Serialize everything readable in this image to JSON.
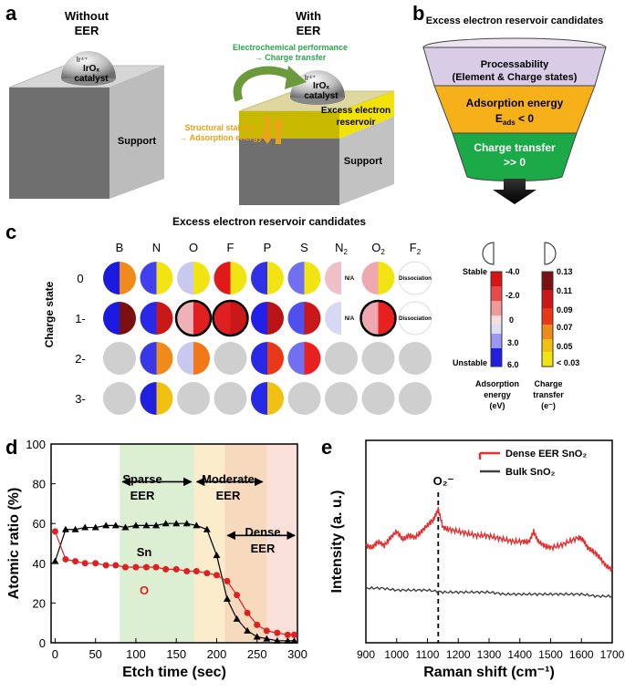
{
  "panels": {
    "a": "a",
    "b": "b",
    "c": "c",
    "d": "d",
    "e": "e"
  },
  "panel_a": {
    "left_title_1": "Without",
    "left_title_2": "EER",
    "left_catalyst_ion": "Ir⁴⁺",
    "left_catalyst_1": "IrOₓ",
    "left_catalyst_2": "catalyst",
    "left_support": "Support",
    "right_title_1": "With",
    "right_title_2": "EER",
    "right_catalyst_ion": "Ir⁴⁺",
    "right_catalyst_1": "IrOₓ",
    "right_catalyst_2": "catalyst",
    "performance_1": "Electrochemical performance",
    "performance_2": "→ Charge transfer",
    "stability_1": "Structural stability",
    "stability_2": "→ Adsorption energy",
    "eer_layer_1": "Excess electron",
    "eer_layer_2": "reservoir",
    "right_support": "Support",
    "colors": {
      "performance": "#2aa84a",
      "stability": "#e8a416",
      "layer": "#f2e20a",
      "arrow": "#6a9a3c"
    }
  },
  "panel_b": {
    "title": "Excess electron reservoir candidates",
    "tier1_1": "Processability",
    "tier1_2": "(Element & Charge states)",
    "tier2_1": "Adsorption energy",
    "tier2_2": "E",
    "tier2_sub": "ads",
    "tier2_3": " < 0",
    "tier3_1": "Charge transfer",
    "tier3_2": ">> 0",
    "colors": {
      "tier1": "#d8cce6",
      "tier2": "#f5b01a",
      "tier3": "#1ca948"
    }
  },
  "panel_c": {
    "title": "Excess electron reservoir candidates",
    "columns": [
      "B",
      "N",
      "O",
      "F",
      "P",
      "S",
      "N",
      "O",
      "F"
    ],
    "column_subscripts": [
      "",
      "",
      "",
      "",
      "",
      "",
      "2",
      "2",
      "2"
    ],
    "rows": [
      "0",
      "1-",
      "2-",
      "3-"
    ],
    "y_label": "Charge state",
    "cells": [
      [
        [
          "#1a1ae0",
          "#f08a1a"
        ],
        [
          "#4040f0",
          "#f2e412"
        ],
        [
          "#c8c8f0",
          "#f2e412"
        ],
        [
          "#e01a1a",
          "#f2e412"
        ],
        [
          "#3030e8",
          "#f2e412"
        ],
        [
          "#7070f0",
          "#f2e412"
        ],
        [
          "#f0c0c8",
          "na"
        ],
        [
          "#f0a8b0",
          "#f2e412"
        ],
        [
          "dis",
          "dis"
        ]
      ],
      [
        [
          "#1a1ae0",
          "#7a1010"
        ],
        [
          "#2828e8",
          "#c81818"
        ],
        [
          "#f0b0b8",
          "#e02020"
        ],
        [
          "#e02020",
          "#c81818"
        ],
        [
          "#2020e8",
          "#b81414"
        ],
        [
          "#5050f0",
          "#c81818"
        ],
        [
          "#d8d8f4",
          "na"
        ],
        [
          "#f0a8b0",
          "#e82020"
        ],
        [
          "dis",
          "dis"
        ]
      ],
      [
        [
          "grey",
          "grey"
        ],
        [
          "#3838e8",
          "#f08a1a"
        ],
        [
          "#c8c8f0",
          "#f07818"
        ],
        [
          "grey",
          "grey"
        ],
        [
          "#2828e8",
          "#e83818"
        ],
        [
          "#7070f0",
          "#e82020"
        ],
        [
          "grey",
          "grey"
        ],
        [
          "grey",
          "grey"
        ],
        [
          "grey",
          "grey"
        ]
      ],
      [
        [
          "grey",
          "grey"
        ],
        [
          "#2020e0",
          "#f0c012"
        ],
        [
          "grey",
          "grey"
        ],
        [
          "grey",
          "grey"
        ],
        [
          "#2828e8",
          "#f0c012"
        ],
        [
          "grey",
          "grey"
        ],
        [
          "grey",
          "grey"
        ],
        [
          "grey",
          "grey"
        ],
        [
          "grey",
          "grey"
        ]
      ]
    ],
    "highlighted": [
      [
        1,
        2
      ],
      [
        1,
        3
      ],
      [
        1,
        7
      ]
    ],
    "na_label": "N/A",
    "dissociation_label": "Dissociation",
    "adsorption_legend": {
      "top": "Stable",
      "bottom": "Unstable",
      "ticks": [
        "-4.0",
        "-2.0",
        "0",
        "3.0",
        "6.0"
      ],
      "title_1": "Adsorption",
      "title_2": "energy",
      "title_3": "(eV)"
    },
    "charge_legend": {
      "ticks": [
        "0.13",
        "0.11",
        "0.09",
        "0.07",
        "0.05",
        "< 0.03"
      ],
      "title_1": "Charge",
      "title_2": "transfer",
      "title_3": "(e⁻)"
    }
  },
  "chart_data": [
    {
      "type": "line",
      "title": "",
      "xlabel": "Etch time (sec)",
      "ylabel": "Atomic ratio (%)",
      "xlim": [
        -5,
        300
      ],
      "ylim": [
        0,
        100
      ],
      "xticks": [
        "0",
        "50",
        "100",
        "150",
        "200",
        "250",
        "300"
      ],
      "yticks": [
        "0",
        "20",
        "40",
        "60",
        "80",
        "100"
      ],
      "series": [
        {
          "name": "Sn",
          "color": "#000000",
          "marker": "triangle",
          "x": [
            0,
            13,
            25,
            37,
            50,
            63,
            75,
            87,
            100,
            113,
            125,
            137,
            150,
            163,
            175,
            188,
            200,
            213,
            225,
            238,
            250,
            262,
            275,
            288,
            296
          ],
          "y": [
            41,
            57,
            57,
            58,
            58,
            59,
            59,
            58,
            59,
            59,
            59,
            60,
            60,
            60,
            59,
            57,
            44,
            22,
            12,
            6,
            3,
            2,
            1,
            1,
            1
          ]
        },
        {
          "name": "O",
          "color": "#e02020",
          "marker": "circle",
          "x": [
            0,
            13,
            25,
            37,
            50,
            63,
            75,
            87,
            100,
            113,
            125,
            137,
            150,
            163,
            175,
            188,
            200,
            213,
            225,
            238,
            250,
            262,
            275,
            288,
            296
          ],
          "y": [
            56,
            42,
            41,
            40,
            40,
            39,
            39,
            38,
            38,
            38,
            38,
            37,
            37,
            36,
            36,
            35,
            34,
            31,
            24,
            15,
            9,
            6,
            5,
            4,
            4
          ]
        }
      ],
      "regions": [
        {
          "label_1": "Sparse",
          "label_2": "EER",
          "x0": 80,
          "x1": 172,
          "color": "#dcefd2"
        },
        {
          "label_1": "Moderate",
          "label_2": "EER",
          "x0": 172,
          "x1": 210,
          "color": "#fbeccb"
        },
        {
          "label_1": "Dense",
          "label_2": "EER",
          "x0": 210,
          "x1": 262,
          "color": "#f7d9bd"
        },
        {
          "label_1": "",
          "label_2": "",
          "x0": 262,
          "x1": 300,
          "color": "#f9e0d8"
        }
      ],
      "arrows": [
        {
          "x0": 80,
          "x1": 172,
          "y": 81
        },
        {
          "x0": 172,
          "x1": 260,
          "y": 81
        },
        {
          "x0": 210,
          "x1": 300,
          "y": 54
        }
      ],
      "series_labels": {
        "sn": "Sn",
        "o": "O"
      }
    },
    {
      "type": "line",
      "title": "",
      "xlabel": "Raman shift (cm⁻¹)",
      "ylabel": "Intensity (a. u.)",
      "xlim": [
        900,
        1700
      ],
      "xticks": [
        "900",
        "1000",
        "1100",
        "1200",
        "1300",
        "1400",
        "1500",
        "1600",
        "1700"
      ],
      "ylim": [
        0,
        100
      ],
      "series": [
        {
          "name": "Dense EER SnO₂",
          "color": "#e03030",
          "x": [
            900,
            920,
            940,
            960,
            980,
            1000,
            1020,
            1040,
            1060,
            1080,
            1100,
            1120,
            1135,
            1150,
            1170,
            1200,
            1230,
            1260,
            1290,
            1320,
            1350,
            1380,
            1410,
            1430,
            1445,
            1460,
            1480,
            1500,
            1530,
            1560,
            1590,
            1605,
            1620,
            1640,
            1660,
            1680,
            1700
          ],
          "y": [
            48,
            47,
            50,
            48,
            52,
            55,
            51,
            53,
            52,
            55,
            58,
            61,
            66,
            57,
            56,
            55,
            54,
            53,
            53,
            52,
            51,
            50,
            50,
            50,
            55,
            50,
            48,
            47,
            48,
            50,
            52,
            51,
            47,
            45,
            42,
            38,
            36
          ]
        },
        {
          "name": "Bulk SnO₂",
          "color": "#404040",
          "x": [
            900,
            950,
            1000,
            1050,
            1100,
            1150,
            1200,
            1250,
            1300,
            1350,
            1400,
            1450,
            1500,
            1550,
            1600,
            1650,
            1700
          ],
          "y": [
            27,
            27,
            26,
            26,
            26,
            25,
            25,
            25,
            25,
            24,
            24,
            24,
            24,
            24,
            24,
            23,
            23
          ]
        }
      ],
      "annotation": {
        "label": "O₂⁻",
        "x": 1135
      },
      "legend": [
        "Dense EER SnO₂",
        "Bulk SnO₂"
      ]
    }
  ]
}
